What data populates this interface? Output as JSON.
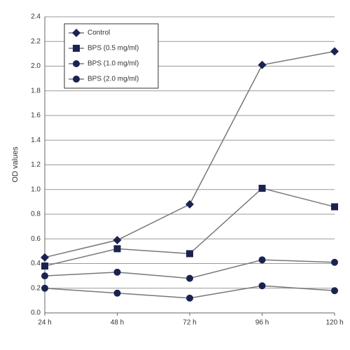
{
  "chart_data": {
    "type": "line",
    "y_label": "OD values",
    "categories": [
      "24 h",
      "48 h",
      "72 h",
      "96 h",
      "120 h"
    ],
    "series": [
      {
        "name": "Control",
        "color": "#1a2350",
        "marker": "diamond",
        "values": [
          0.45,
          0.59,
          0.88,
          2.01,
          2.12
        ]
      },
      {
        "name": "BPS (0.5 mg/ml)",
        "color": "#1a2350",
        "marker": "square",
        "values": [
          0.38,
          0.52,
          0.48,
          1.01,
          0.86
        ]
      },
      {
        "name": "BPS (1.0 mg/ml)",
        "color": "#1a2350",
        "marker": "circle",
        "values": [
          0.3,
          0.33,
          0.28,
          0.43,
          0.41
        ]
      },
      {
        "name": "BPS (2.0 mg/ml)",
        "color": "#1a2350",
        "marker": "circle",
        "values": [
          0.2,
          0.16,
          0.12,
          0.22,
          0.18
        ]
      }
    ],
    "ylim": [
      0,
      2.4
    ],
    "yticks": [
      {
        "value": 0,
        "label": "0.0"
      },
      0.2,
      0.4,
      0.6,
      0.8,
      {
        "value": 1,
        "label": "1.0"
      },
      1.2,
      1.4,
      1.6,
      1.8,
      {
        "value": 2,
        "label": "2.0"
      },
      2.2,
      2.4
    ],
    "grid": true,
    "legend": "top-left"
  }
}
